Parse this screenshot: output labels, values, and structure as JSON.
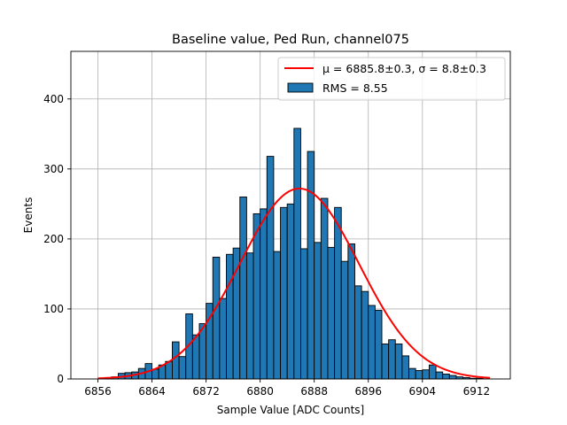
{
  "chart_data": {
    "type": "histogram",
    "title": "Baseline value, Ped Run, channel075",
    "xlabel": "Sample Value [ADC Counts]",
    "ylabel": "Events",
    "xlim": [
      6852,
      6917
    ],
    "ylim": [
      0,
      468
    ],
    "xticks": [
      6856,
      6864,
      6872,
      6880,
      6888,
      6896,
      6904,
      6912
    ],
    "yticks": [
      0,
      100,
      200,
      300,
      400
    ],
    "grid": true,
    "bin_start": 6856,
    "bin_width": 1,
    "counts": [
      0,
      2,
      3,
      8,
      9,
      10,
      15,
      22,
      14,
      20,
      25,
      53,
      32,
      93,
      63,
      79,
      108,
      174,
      115,
      178,
      187,
      260,
      180,
      236,
      243,
      318,
      182,
      245,
      250,
      358,
      186,
      325,
      195,
      258,
      188,
      245,
      168,
      193,
      133,
      125,
      105,
      98,
      50,
      56,
      50,
      33,
      15,
      12,
      13,
      20,
      10,
      7,
      5,
      3,
      2,
      1,
      1,
      0,
      0
    ],
    "fit": {
      "label": "μ = 6885.8±0.3, σ = 8.8±0.3",
      "mu": 6885.8,
      "sigma": 8.8,
      "amplitude": 272,
      "x_range": [
        6856,
        6914
      ],
      "color": "#ff0000"
    },
    "histogram_label": "RMS = 8.55",
    "bar_color": "#1f77b4",
    "legend_position": "top-right"
  }
}
